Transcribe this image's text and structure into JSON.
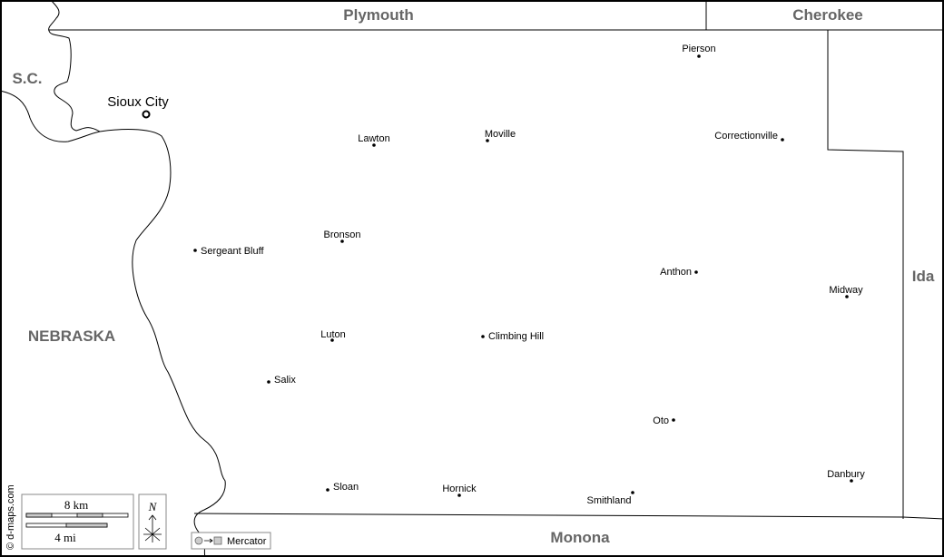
{
  "regions": {
    "plymouth": "Plymouth",
    "cherokee": "Cherokee",
    "sc": "S.C.",
    "ida": "Ida",
    "nebraska": "NEBRASKA",
    "monona": "Monona"
  },
  "cities": {
    "sioux_city": "Sioux City",
    "pierson": "Pierson",
    "lawton": "Lawton",
    "moville": "Moville",
    "correctionville": "Correctionville",
    "sergeant_bluff": "Sergeant Bluff",
    "bronson": "Bronson",
    "anthon": "Anthon",
    "midway": "Midway",
    "luton": "Luton",
    "climbing_hill": "Climbing Hill",
    "salix": "Salix",
    "oto": "Oto",
    "sloan": "Sloan",
    "hornick": "Hornick",
    "smithland": "Smithland",
    "danbury": "Danbury"
  },
  "scale": {
    "km": "8 km",
    "mi": "4 mi"
  },
  "north": "N",
  "projection": "Mercator",
  "credit": "© d-maps.com"
}
